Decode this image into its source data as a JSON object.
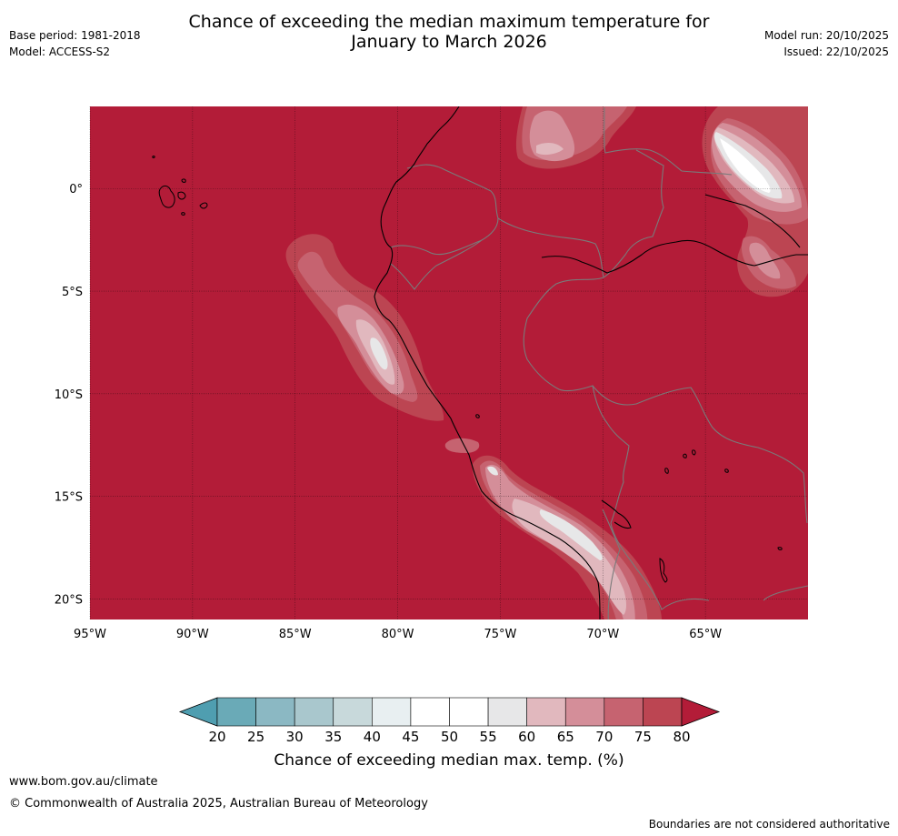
{
  "title": {
    "line1": "Chance of exceeding the median maximum temperature for",
    "line2": "January to March 2026"
  },
  "meta_left": {
    "base_period": "Base period: 1981-2018",
    "model": "Model: ACCESS-S2"
  },
  "meta_right": {
    "model_run": "Model run: 20/10/2025",
    "issued": "Issued: 22/10/2025"
  },
  "map": {
    "background_color": "#b31c38",
    "lat_labels": [
      "0°",
      "5°S",
      "10°S",
      "15°S",
      "20°S"
    ],
    "lon_labels": [
      "95°W",
      "90°W",
      "85°W",
      "80°W",
      "75°W",
      "70°W",
      "65°W"
    ],
    "lat_range": [
      -21,
      4
    ],
    "lon_range": [
      -95,
      -60
    ]
  },
  "colorbar": {
    "ticks": [
      "20",
      "25",
      "30",
      "35",
      "40",
      "45",
      "50",
      "55",
      "60",
      "65",
      "70",
      "75",
      "80"
    ],
    "colors": [
      "#6aaab7",
      "#8bb8c3",
      "#a9c7cd",
      "#c8d9db",
      "#e8eff1",
      "#ffffff",
      "#ffffff",
      "#e7e7e8",
      "#e1b8be",
      "#d48e99",
      "#c66370",
      "#bc4552"
    ],
    "under_color": "#4f9eb0",
    "over_color": "#b31c38",
    "label": "Chance of exceeding median max. temp. (%)"
  },
  "footer": {
    "url": "www.bom.gov.au/climate",
    "copyright": "© Commonwealth of Australia 2025, Australian Bureau of Meteorology",
    "note": "Boundaries are not considered authoritative"
  }
}
